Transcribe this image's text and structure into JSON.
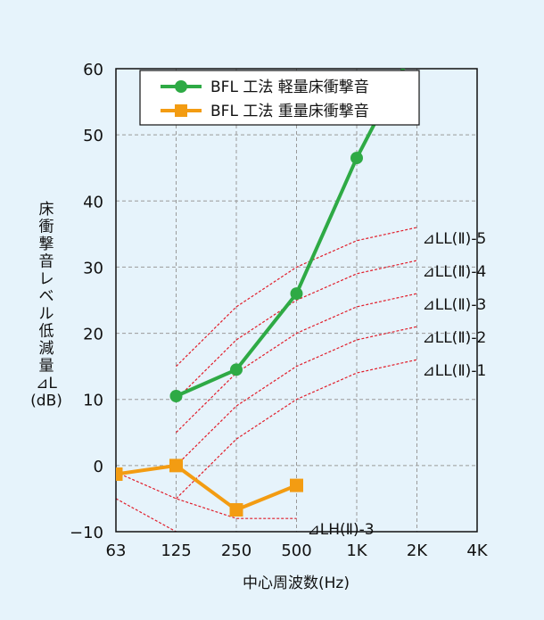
{
  "colors": {
    "background": "#e6f3fb",
    "light": "#2eaa45",
    "heavy": "#f39c12",
    "reference": "#e11d2a",
    "grid": "#9a9a9a"
  },
  "chart_data": {
    "type": "line",
    "x_scale": "log",
    "categories": [
      "63",
      "125",
      "250",
      "500",
      "1K",
      "2K",
      "4K"
    ],
    "xlabel": "中心周波数(Hz)",
    "ylabel_lines": [
      "床",
      "衝",
      "撃",
      "音",
      "レ",
      "ベ",
      "ル",
      "低",
      "減",
      "量",
      "⊿L",
      "(dB)"
    ],
    "ylim": [
      -10,
      60
    ],
    "yticks": [
      -10,
      0,
      10,
      20,
      30,
      40,
      50,
      60
    ],
    "ytick_labels": [
      "−10",
      "0",
      "10",
      "20",
      "30",
      "40",
      "50",
      "60"
    ],
    "grid": true,
    "legend_position": "top",
    "series": [
      {
        "name": "BFL 工法 軽量床衝撃音",
        "marker": "circle",
        "x": [
          "125",
          "250",
          "500",
          "1K",
          "2K"
        ],
        "values": [
          10.5,
          14.5,
          26,
          46.5,
          64
        ]
      },
      {
        "name": "BFL 工法 重量床衝撃音",
        "marker": "square",
        "x": [
          "63",
          "125",
          "250",
          "500"
        ],
        "values": [
          -1.3,
          0,
          -6.7,
          -3
        ]
      }
    ],
    "reference_curves": [
      {
        "label": "⊿LL(Ⅱ)-5",
        "x": [
          "125",
          "250",
          "500",
          "1K",
          "2K"
        ],
        "values": [
          15,
          24,
          30,
          34,
          36
        ]
      },
      {
        "label": "⊿LL(Ⅱ)-4",
        "x": [
          "125",
          "250",
          "500",
          "1K",
          "2K"
        ],
        "values": [
          10,
          19,
          25,
          29,
          31
        ]
      },
      {
        "label": "⊿LL(Ⅱ)-3",
        "x": [
          "125",
          "250",
          "500",
          "1K",
          "2K"
        ],
        "values": [
          5,
          14,
          20,
          24,
          26
        ]
      },
      {
        "label": "⊿LL(Ⅱ)-2",
        "x": [
          "125",
          "250",
          "500",
          "1K",
          "2K"
        ],
        "values": [
          0,
          9,
          15,
          19,
          21
        ]
      },
      {
        "label": "⊿LL(Ⅱ)-1",
        "x": [
          "125",
          "250",
          "500",
          "1K",
          "2K"
        ],
        "values": [
          -5,
          4,
          10,
          14,
          16
        ]
      },
      {
        "label": "⊿LH(Ⅱ)-3",
        "x": [
          "63",
          "125",
          "250",
          "500"
        ],
        "values": [
          -1,
          -5,
          -8,
          -8
        ]
      },
      {
        "label": "",
        "x": [
          "63",
          "125"
        ],
        "values": [
          -5,
          -10
        ]
      }
    ]
  }
}
